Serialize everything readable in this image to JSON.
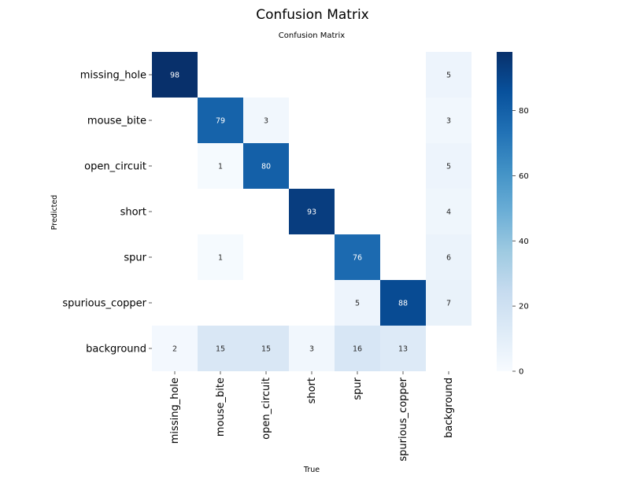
{
  "chart_data": {
    "type": "heatmap",
    "suptitle": "Confusion Matrix",
    "title": "Confusion Matrix",
    "xlabel": "True",
    "ylabel": "Predicted",
    "classes": [
      "missing_hole",
      "mouse_bite",
      "open_circuit",
      "short",
      "spur",
      "spurious_copper",
      "background"
    ],
    "matrix": [
      [
        98,
        null,
        null,
        null,
        null,
        null,
        5
      ],
      [
        null,
        79,
        3,
        null,
        null,
        null,
        3
      ],
      [
        null,
        1,
        80,
        null,
        null,
        null,
        5
      ],
      [
        null,
        null,
        null,
        93,
        null,
        null,
        4
      ],
      [
        null,
        1,
        null,
        null,
        76,
        null,
        6
      ],
      [
        null,
        null,
        null,
        null,
        5,
        88,
        7
      ],
      [
        2,
        15,
        15,
        3,
        16,
        13,
        null
      ]
    ],
    "colorbar": {
      "min": 0,
      "max": 98,
      "ticks": [
        0,
        20,
        40,
        60,
        80
      ]
    },
    "colormap": "Blues",
    "colors": {
      "low": "#f7fbff",
      "high": "#08306b"
    }
  }
}
